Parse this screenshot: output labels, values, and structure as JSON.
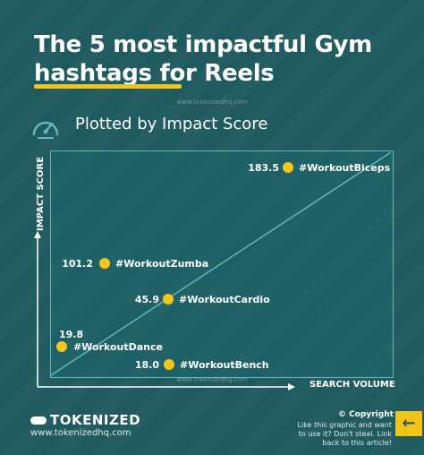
{
  "header": {
    "title_line1": "The 5 most impactful Gym",
    "title_line2": "hashtags for Reels",
    "watermark": "www.tokenizedhq.com",
    "subtitle": "Plotted by Impact Score",
    "icon": "gauge-icon"
  },
  "chart_data": {
    "type": "scatter",
    "xlabel": "SEARCH VOLUME",
    "ylabel": "IMPACT SCORE",
    "points": [
      {
        "label": "#WorkoutBiceps",
        "score": 183.5,
        "score_text": "183.5",
        "y": 183.5
      },
      {
        "label": "#WorkoutZumba",
        "score": 101.2,
        "score_text": "101.2",
        "y": 101.2
      },
      {
        "label": "#WorkoutCardio",
        "score": 45.9,
        "score_text": "45.9",
        "y": 45.9
      },
      {
        "label": "#WorkoutDance",
        "score": 19.8,
        "score_text": "19.8",
        "y": 19.8
      },
      {
        "label": "#WorkoutBench",
        "score": 18.0,
        "score_text": "18.0",
        "y": 18.0
      }
    ],
    "grid": false,
    "colors": {
      "point": "#f5c518",
      "frame": "#5fb9bd",
      "diagonal": "#5fb9bd"
    }
  },
  "watermark_bottom": "www.tokenizedhq.com",
  "footer": {
    "brand": "TOKENIZED",
    "url": "www.tokenizedhq.com",
    "copyright_title": "© Copyright",
    "copyright_text": "Like this graphic and want to use it? Don't steal. Link back to this article!",
    "arrow": "←"
  }
}
